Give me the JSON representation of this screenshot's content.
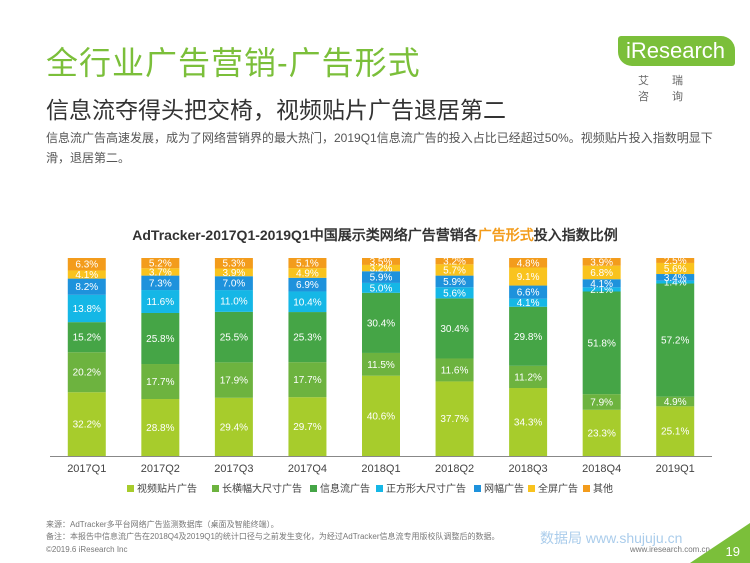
{
  "page": {
    "title": "全行业广告营销-广告形式",
    "subtitle": "信息流夺得头把交椅，视频贴片广告退居第二",
    "description": "信息流广告高速发展，成为了网络营销界的最大热门，2019Q1信息流广告的投入占比已经超过50%。视频贴片投入指数明显下滑，退居第二。",
    "logo_text": "iResearch",
    "logo_cn": "艾 瑞 咨 询",
    "source": "来源：AdTracker多平台网络广告监测数据库（桌面及智能终端）。",
    "note": "备注：本报告中信息流广告在2018Q4及2019Q1的统计口径与之前发生变化，为经过AdTracker信息流专用版校队调整后的数据。",
    "copyright": "©2019.6 iResearch Inc",
    "website": "www.iresearch.com.cn",
    "watermark": "数据局 www.shujuju.cn",
    "page_number": "19"
  },
  "colors": {
    "brand": "#7bbf3a",
    "series": [
      "#a7cc2c",
      "#6db33f",
      "#45a546",
      "#15b7e6",
      "#1e92dc",
      "#f9c31e",
      "#f39c1c"
    ]
  },
  "chart_data": {
    "type": "bar",
    "stacked": true,
    "percent": true,
    "title_prefix": "AdTracker-2017Q1-2019Q1中国展示类网络广告营销各",
    "title_highlight": "广告形式",
    "title_suffix": "投入指数比例",
    "categories": [
      "2017Q1",
      "2017Q2",
      "2017Q3",
      "2017Q4",
      "2018Q1",
      "2018Q2",
      "2018Q3",
      "2018Q4",
      "2019Q1"
    ],
    "series": [
      {
        "name": "视频贴片广告",
        "values": [
          32.2,
          28.8,
          29.4,
          29.7,
          40.6,
          37.7,
          34.3,
          23.3,
          25.1
        ]
      },
      {
        "name": "长横幅大尺寸广告",
        "values": [
          20.2,
          17.7,
          17.9,
          17.7,
          11.5,
          11.6,
          11.2,
          7.9,
          4.9
        ]
      },
      {
        "name": "信息流广告",
        "values": [
          15.2,
          25.8,
          25.5,
          25.3,
          30.4,
          30.4,
          29.8,
          51.8,
          57.2
        ]
      },
      {
        "name": "正方形大尺寸广告",
        "values": [
          13.8,
          11.6,
          11.0,
          10.4,
          5.0,
          5.6,
          4.1,
          2.1,
          1.4
        ]
      },
      {
        "name": "网幅广告",
        "values": [
          8.2,
          7.3,
          7.0,
          6.9,
          5.9,
          5.9,
          6.6,
          4.1,
          3.4
        ]
      },
      {
        "name": "全屏广告",
        "values": [
          4.1,
          3.7,
          3.9,
          4.9,
          3.2,
          5.7,
          9.1,
          6.8,
          5.6
        ]
      },
      {
        "name": "其他",
        "values": [
          6.3,
          5.2,
          5.3,
          5.1,
          3.5,
          3.2,
          4.8,
          3.9,
          2.5
        ]
      }
    ],
    "ylim": [
      0,
      100
    ],
    "grid": false,
    "legend_position": "bottom"
  }
}
